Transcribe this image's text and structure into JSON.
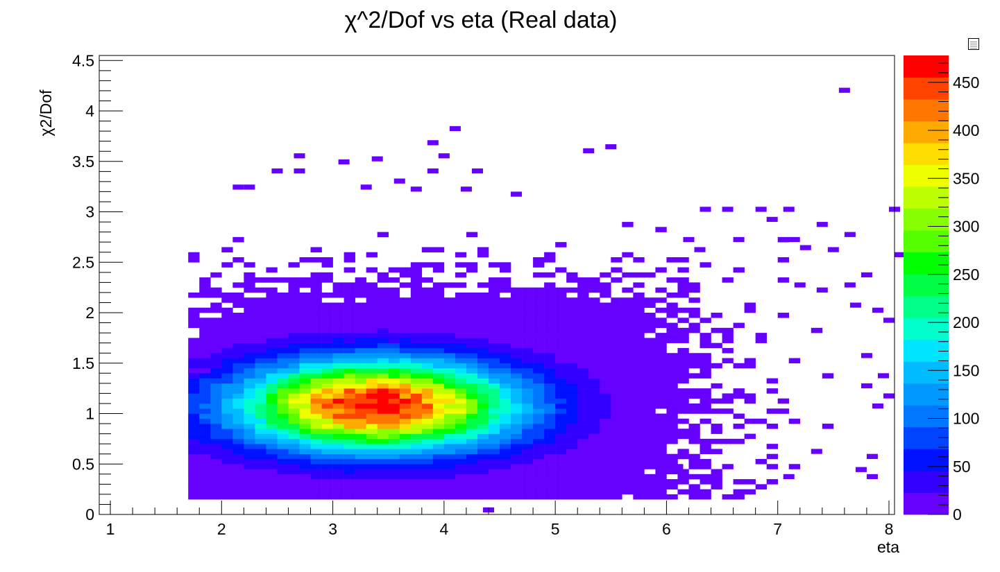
{
  "chart_data": {
    "type": "heatmap",
    "title": "χ^2/Dof vs eta (Real data)",
    "xlabel": "eta",
    "ylabel": "χ2/Dof",
    "xlim": [
      0.9,
      8.05
    ],
    "ylim": [
      0,
      4.55
    ],
    "x_ticks": [
      "1",
      "2",
      "3",
      "4",
      "5",
      "6",
      "7",
      "8"
    ],
    "y_ticks": [
      "0",
      "0.5",
      "1",
      "1.5",
      "2",
      "2.5",
      "3",
      "3.5",
      "4",
      "4.5"
    ],
    "z_range": [
      0,
      478
    ],
    "colorbar_ticks": [
      "0",
      "50",
      "100",
      "150",
      "200",
      "250",
      "300",
      "350",
      "400",
      "450"
    ],
    "grid": false,
    "palette": [
      "#6600ff",
      "#3300ff",
      "#0011ff",
      "#0044ff",
      "#0077ff",
      "#0099ff",
      "#00bbff",
      "#00e5ff",
      "#00ffcc",
      "#00ff88",
      "#00ff44",
      "#00ff00",
      "#55ff00",
      "#88ff00",
      "#bbff00",
      "#eeff00",
      "#ffdd00",
      "#ffaa00",
      "#ff7700",
      "#ff4400",
      "#ff0000"
    ],
    "core": {
      "eta_center": 3.4,
      "eta_width": 0.85,
      "chi_center": 1.08,
      "chi_width": 0.3,
      "peak": 478
    },
    "isolated_bins": [
      [
        4.35,
        0.02
      ],
      [
        3.35,
        3.5
      ],
      [
        3.05,
        3.47
      ],
      [
        2.45,
        3.38
      ],
      [
        2.65,
        3.38
      ],
      [
        3.85,
        3.38
      ],
      [
        4.25,
        3.38
      ],
      [
        3.55,
        3.28
      ],
      [
        3.7,
        3.2
      ],
      [
        3.25,
        3.22
      ],
      [
        2.1,
        3.22
      ],
      [
        2.2,
        3.22
      ],
      [
        4.15,
        3.2
      ],
      [
        4.6,
        3.15
      ],
      [
        5.25,
        3.58
      ],
      [
        5.45,
        3.62
      ],
      [
        3.85,
        3.66
      ],
      [
        4.05,
        3.8
      ],
      [
        2.65,
        3.53
      ],
      [
        3.95,
        3.53
      ],
      [
        7.55,
        4.18
      ],
      [
        6.3,
        3.0
      ],
      [
        6.5,
        3.0
      ],
      [
        6.8,
        3.0
      ],
      [
        7.05,
        3.0
      ],
      [
        8.0,
        3.0
      ],
      [
        6.9,
        2.9
      ],
      [
        7.35,
        2.85
      ],
      [
        6.6,
        2.7
      ],
      [
        7.1,
        2.7
      ],
      [
        7.6,
        2.75
      ],
      [
        7.45,
        2.6
      ],
      [
        7.2,
        2.62
      ],
      [
        8.05,
        2.55
      ],
      [
        7.75,
        2.35
      ],
      [
        7.15,
        2.25
      ],
      [
        7.35,
        2.2
      ],
      [
        7.6,
        2.25
      ],
      [
        7.65,
        2.05
      ],
      [
        7.85,
        2.0
      ],
      [
        7.95,
        1.9
      ],
      [
        7.75,
        1.55
      ],
      [
        7.9,
        1.35
      ],
      [
        7.75,
        1.25
      ],
      [
        1.8,
        1.4
      ],
      [
        1.7,
        1.4
      ],
      [
        1.8,
        1.55
      ],
      [
        5.35,
        0.15
      ],
      [
        5.55,
        0.22
      ],
      [
        5.2,
        0.25
      ],
      [
        4.8,
        0.3
      ],
      [
        4.0,
        0.22
      ],
      [
        3.8,
        0.22
      ],
      [
        3.2,
        0.22
      ],
      [
        2.6,
        0.22
      ],
      [
        7.05,
        0.35
      ],
      [
        7.8,
        0.35
      ],
      [
        7.7,
        0.42
      ],
      [
        6.4,
        0.35
      ],
      [
        6.05,
        0.45
      ],
      [
        7.3,
        0.6
      ],
      [
        7.8,
        0.55
      ],
      [
        6.15,
        2.7
      ],
      [
        6.25,
        2.6
      ],
      [
        7.85,
        1.05
      ],
      [
        7.95,
        1.15
      ]
    ]
  }
}
